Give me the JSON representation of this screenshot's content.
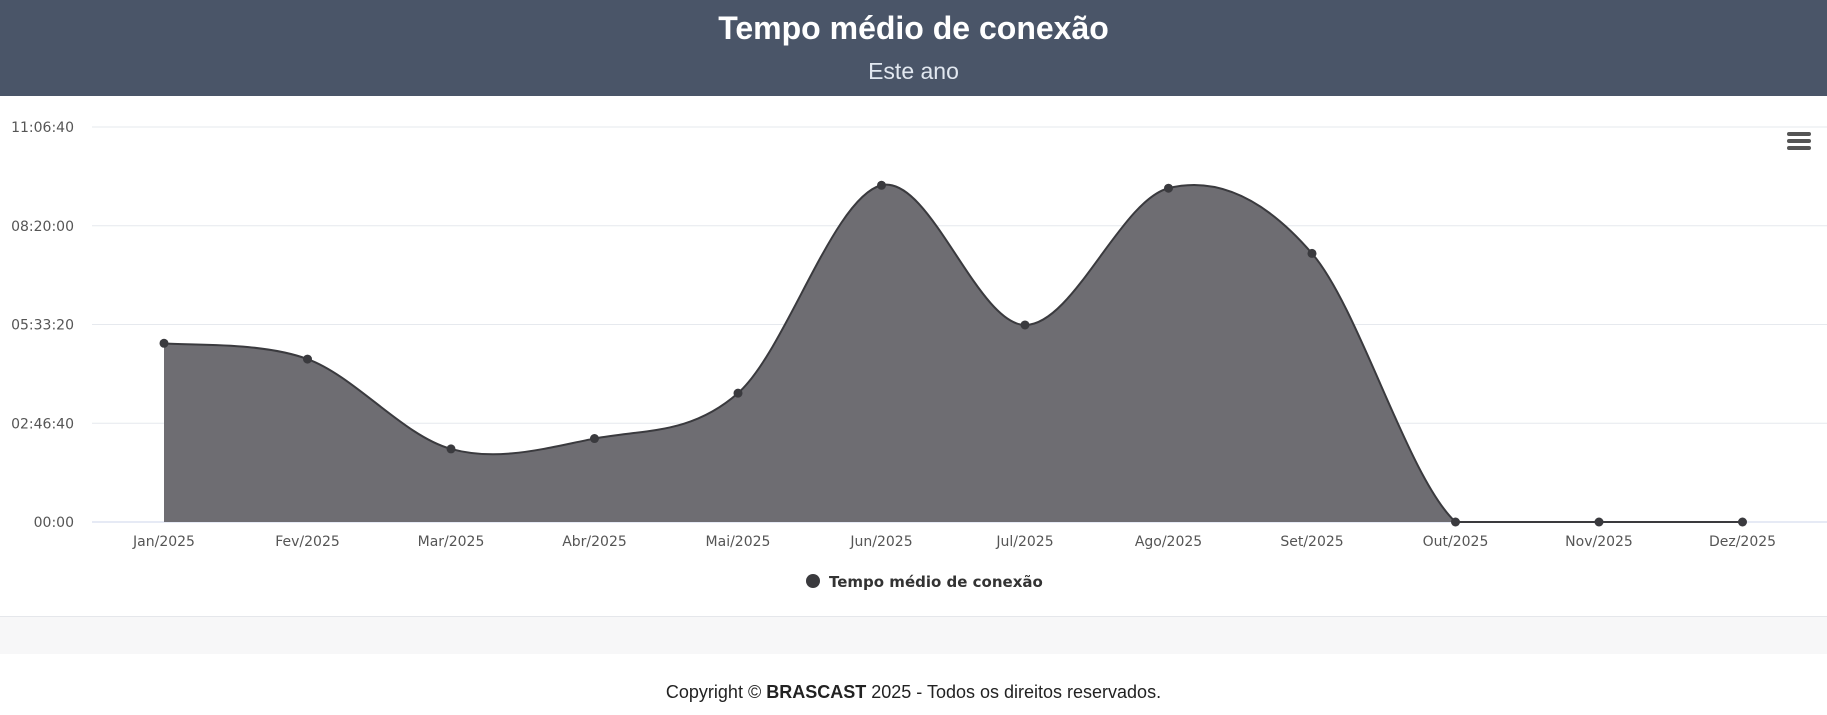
{
  "chart_data": {
    "type": "area",
    "title": "Tempo médio de conexão",
    "subtitle": "Este ano",
    "categories": [
      "Jan/2025",
      "Fev/2025",
      "Mar/2025",
      "Abr/2025",
      "Mai/2025",
      "Jun/2025",
      "Jul/2025",
      "Ago/2025",
      "Set/2025",
      "Out/2025",
      "Nov/2025",
      "Dez/2025"
    ],
    "series": [
      {
        "name": "Tempo médio de conexão",
        "values_seconds": [
          18100,
          16500,
          7400,
          8450,
          13050,
          34100,
          19950,
          33800,
          27200,
          0,
          0,
          0
        ]
      }
    ],
    "yticks": [
      "00:00",
      "02:46:40",
      "05:33:20",
      "08:20:00",
      "11:06:40"
    ],
    "ytick_values_seconds": [
      0,
      10000,
      20000,
      30000,
      40000
    ],
    "ylim_seconds": [
      0,
      40000
    ],
    "grid": true,
    "legend": "bottom-center",
    "colors": {
      "area": "#6e6d72",
      "line": "#3a3a3e",
      "grid": "#e6e9ee"
    }
  },
  "footer": {
    "prefix": "Copyright © ",
    "brand": "BRASCAST",
    "suffix": " 2025 - Todos os direitos reservados."
  }
}
